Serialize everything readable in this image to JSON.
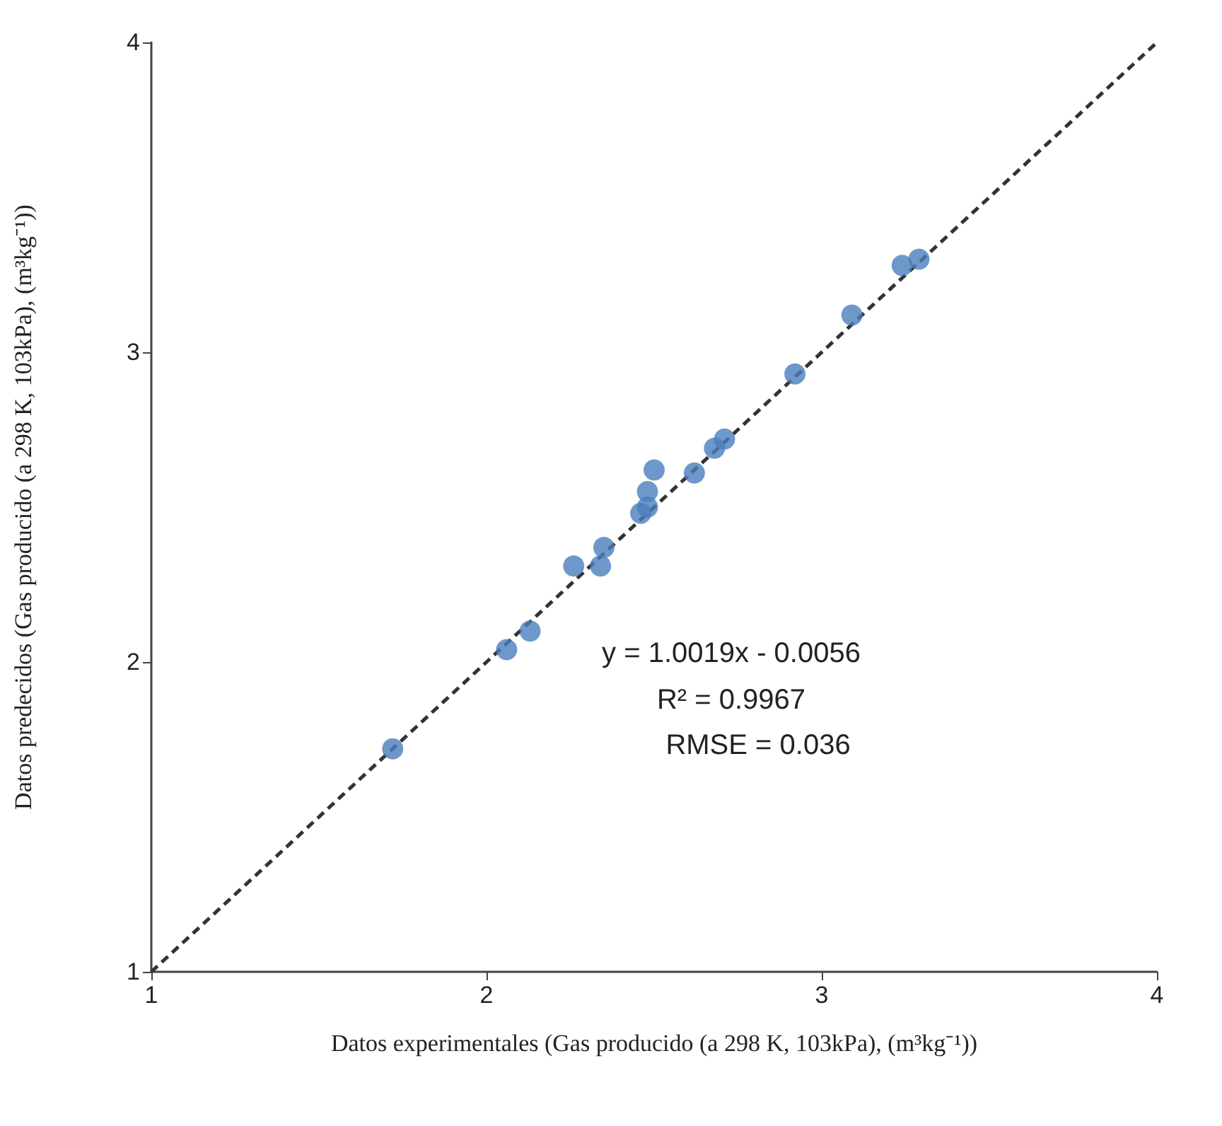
{
  "chart_data": {
    "type": "scatter",
    "xlabel": "Datos experimentales (Gas producido (a 298 K, 103kPa), (m³kg⁻¹))",
    "ylabel": "Datos predecidos (Gas producido (a 298 K, 103kPa), (m³kg⁻¹))",
    "xlim": [
      1,
      4
    ],
    "ylim": [
      1,
      4
    ],
    "xticks": [
      1,
      2,
      3,
      4
    ],
    "yticks": [
      1,
      2,
      3,
      4
    ],
    "grid": false,
    "marker": "circle",
    "annotations": [
      "y = 1.0019x - 0.0056",
      "R² = 0.9967",
      "RMSE = 0.036"
    ],
    "series": [
      {
        "color": "#4a7ebb",
        "x": [
          1.72,
          2.06,
          2.13,
          2.26,
          2.34,
          2.35,
          2.46,
          2.48,
          2.48,
          2.5,
          2.62,
          2.68,
          2.71,
          2.92,
          3.09,
          3.24,
          3.29
        ],
        "values": [
          1.72,
          2.04,
          2.1,
          2.31,
          2.31,
          2.37,
          2.48,
          2.5,
          2.55,
          2.62,
          2.61,
          2.69,
          2.72,
          2.93,
          3.12,
          3.28,
          3.3
        ]
      },
      {
        "type": "line",
        "color": "#333333",
        "line_style": "dashed",
        "marker": "none",
        "x": [
          1,
          4
        ],
        "values": [
          1,
          4
        ]
      }
    ]
  }
}
